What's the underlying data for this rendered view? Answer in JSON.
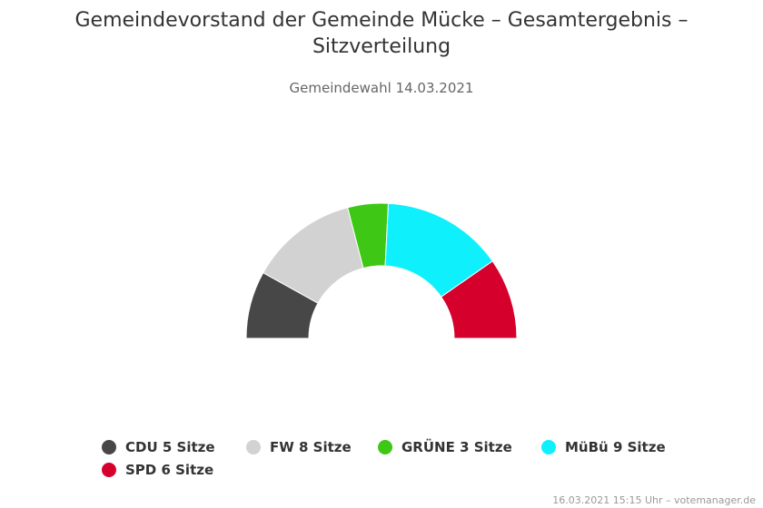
{
  "chart_data": {
    "type": "pie",
    "variant": "semicircle-parliament",
    "title": "Gemeindevorstand der Gemeinde Mücke – Gesamtergebnis – Sitzverteilung",
    "subtitle": "Gemeindewahl 14.03.2021",
    "series": [
      {
        "name": "CDU",
        "value": 5,
        "label": "CDU 5 Sitze",
        "color": "#474747"
      },
      {
        "name": "FW",
        "value": 8,
        "label": "FW 8 Sitze",
        "color": "#d2d2d2"
      },
      {
        "name": "GRÜNE",
        "value": 3,
        "label": "GRÜNE 3 Sitze",
        "color": "#3ec714"
      },
      {
        "name": "MüBü",
        "value": 9,
        "label": "MüBü 9 Sitze",
        "color": "#0ff0fd"
      },
      {
        "name": "SPD",
        "value": 6,
        "label": "SPD 6 Sitze",
        "color": "#d6002c"
      }
    ],
    "legend_position": "bottom"
  },
  "credits": "16.03.2021 15:15 Uhr – votemanager.de"
}
